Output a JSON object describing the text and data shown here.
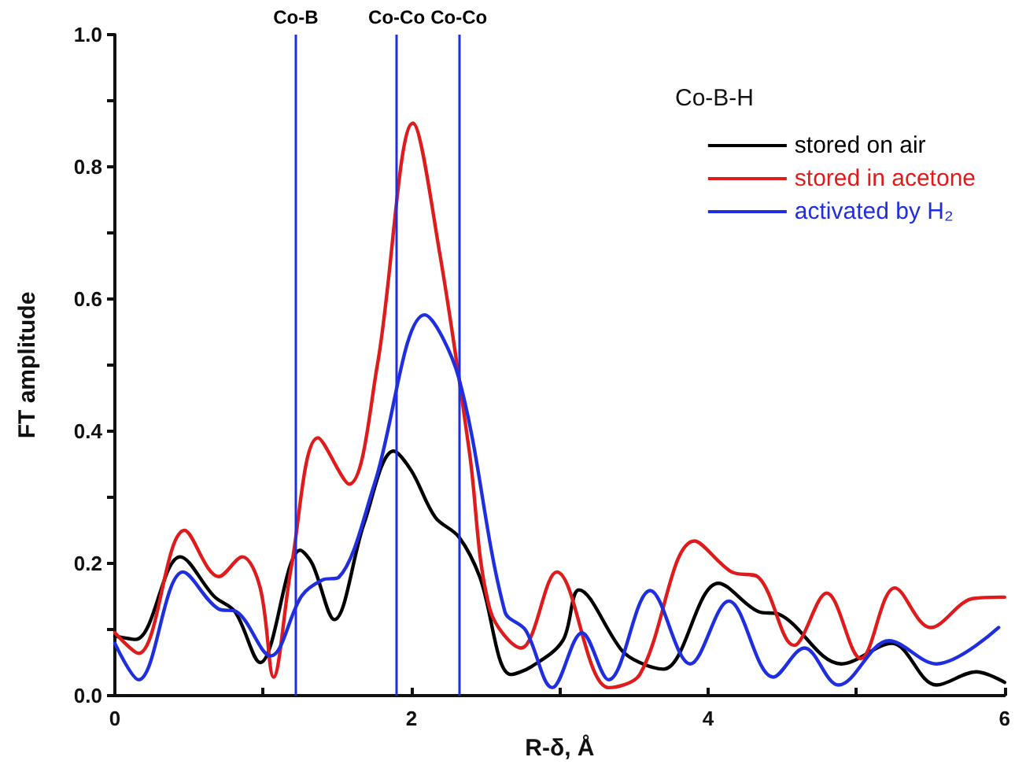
{
  "chart_data": {
    "type": "line",
    "xlabel": "R-δ, Å",
    "ylabel": "FT amplitude",
    "legend_title": "Co-B-H",
    "legend": "top right",
    "grid": false,
    "marker": "none",
    "line_style": "solid",
    "xlim": [
      0,
      6
    ],
    "xticks": [
      0,
      {
        "value": 1,
        "label": null
      },
      2,
      {
        "value": 3,
        "label": null
      },
      4,
      {
        "value": 5,
        "label": null
      },
      6
    ],
    "ylim": [
      0,
      1
    ],
    "yticks": [
      {
        "value": 0,
        "label": "0.0"
      },
      {
        "value": 0.1,
        "label": null
      },
      {
        "value": 0.2,
        "label": "0.2"
      },
      {
        "value": 0.3,
        "label": null
      },
      {
        "value": 0.4,
        "label": "0.4"
      },
      {
        "value": 0.5,
        "label": null
      },
      {
        "value": 0.6,
        "label": "0.6"
      },
      {
        "value": 0.7,
        "label": null
      },
      {
        "value": 0.8,
        "label": "0.8"
      },
      {
        "value": 0.9,
        "label": null
      },
      {
        "value": 1,
        "label": "1.0"
      }
    ],
    "ref_lines": [
      {
        "axis": "x",
        "value": 1.22,
        "label": "Co-B",
        "color": "#1f2fe0"
      },
      {
        "axis": "x",
        "value": 1.9,
        "label": "Co-Co",
        "color": "#1f2fe0"
      },
      {
        "axis": "x",
        "value": 2.32,
        "label": "Co-Co",
        "color": "#1f2fe0"
      }
    ],
    "series": [
      {
        "name": "stored on air",
        "color": "#000000",
        "x": [
          0,
          0.14,
          0.44,
          0.67,
          0.81,
          0.98,
          1.25,
          1.33,
          1.48,
          1.68,
          1.88,
          2.0,
          2.16,
          2.32,
          2.46,
          2.67,
          2.81,
          3.02,
          3.13,
          3.42,
          3.54,
          3.7,
          4.07,
          4.34,
          4.48,
          4.9,
          5.24,
          5.54,
          5.81,
          6.0
        ],
        "values": [
          0.09,
          0.085,
          0.21,
          0.15,
          0.127,
          0.05,
          0.22,
          0.2,
          0.115,
          0.26,
          0.37,
          0.34,
          0.27,
          0.24,
          0.18,
          0.032,
          0.044,
          0.083,
          0.16,
          0.068,
          0.05,
          0.04,
          0.17,
          0.127,
          0.123,
          0.048,
          0.079,
          0.016,
          0.036,
          0.02
        ]
      },
      {
        "name": "stored in acetone",
        "color": "#e01b1b",
        "x": [
          0,
          0.16,
          0.47,
          0.7,
          0.86,
          0.98,
          1.07,
          1.19,
          1.37,
          1.58,
          1.77,
          2.01,
          2.19,
          2.39,
          2.53,
          2.74,
          2.98,
          3.33,
          3.54,
          3.91,
          4.16,
          4.34,
          4.58,
          4.8,
          5.03,
          5.26,
          5.5,
          5.79,
          6.0
        ],
        "values": [
          0.095,
          0.064,
          0.25,
          0.18,
          0.21,
          0.163,
          0.028,
          0.195,
          0.39,
          0.32,
          0.5,
          0.866,
          0.67,
          0.37,
          0.13,
          0.072,
          0.187,
          0.012,
          0.032,
          0.234,
          0.187,
          0.179,
          0.076,
          0.155,
          0.056,
          0.163,
          0.103,
          0.147,
          0.149
        ]
      },
      {
        "name": "activated by H₂",
        "color": "#1f2fe0",
        "x": [
          0,
          0.16,
          0.46,
          0.7,
          0.82,
          1.05,
          1.26,
          1.4,
          1.51,
          1.75,
          2.09,
          2.32,
          2.63,
          2.77,
          2.95,
          3.15,
          3.33,
          3.61,
          3.88,
          4.14,
          4.44,
          4.65,
          4.88,
          5.22,
          5.54,
          5.96
        ],
        "values": [
          0.079,
          0.024,
          0.187,
          0.131,
          0.127,
          0.06,
          0.151,
          0.175,
          0.179,
          0.32,
          0.576,
          0.48,
          0.127,
          0.099,
          0.012,
          0.095,
          0.024,
          0.159,
          0.048,
          0.143,
          0.028,
          0.072,
          0.016,
          0.083,
          0.048,
          0.103
        ]
      }
    ]
  }
}
